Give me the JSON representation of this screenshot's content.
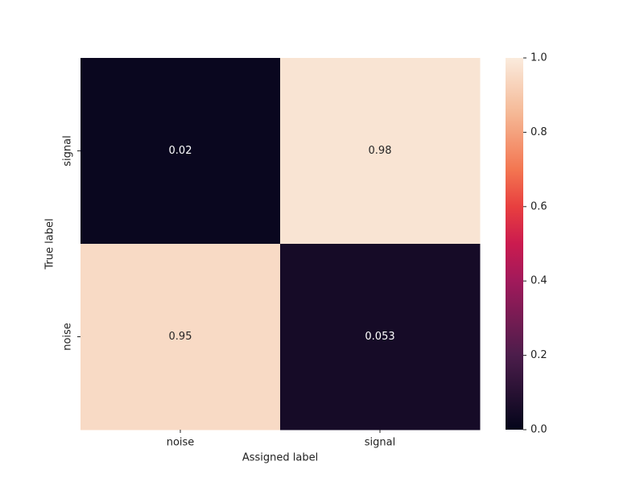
{
  "chart_data": {
    "type": "heatmap",
    "x_categories": [
      "noise",
      "signal"
    ],
    "y_categories": [
      "signal",
      "noise"
    ],
    "values": [
      [
        0.02,
        0.98
      ],
      [
        0.95,
        0.053
      ]
    ],
    "xlabel": "Assigned label",
    "ylabel": "True label",
    "colormap": "rocket",
    "clim": [
      0,
      1
    ],
    "cticks": [
      {
        "value": 0,
        "label": "0.0"
      },
      0.2,
      0.4,
      0.6,
      0.8,
      {
        "value": 1,
        "label": "1.0"
      }
    ]
  }
}
